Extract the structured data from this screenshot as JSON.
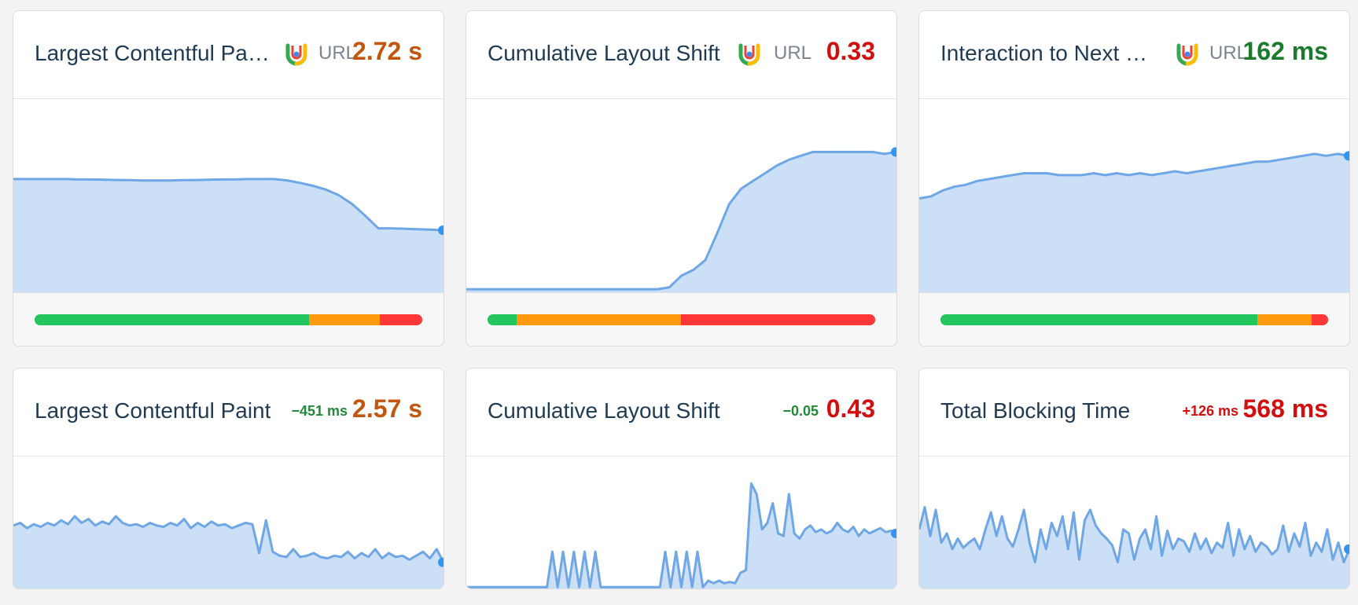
{
  "colors": {
    "good": "#22c55e",
    "needs_improvement": "#ff9a0e",
    "poor": "#ff3737",
    "value_orange": "#c2560e",
    "value_red": "#d10f0f",
    "value_green": "#1a7a2e",
    "delta_green": "#22883a",
    "delta_red": "#d10f0f",
    "line": "#6ea6e6",
    "fill": "#cbdff6",
    "endpoint": "#2f96f5"
  },
  "cards": [
    {
      "title": "Largest Contentful Pa…",
      "source_icon": "crux-chrome-icon",
      "url_label": "URL",
      "value": "2.72 s",
      "value_color": "value_orange",
      "distribution": {
        "good": 0.707,
        "needs_improvement": 0.183,
        "poor": 0.11
      }
    },
    {
      "title": "Cumulative Layout Shift",
      "source_icon": "crux-chrome-icon",
      "url_label": "URL",
      "value": "0.33",
      "value_color": "value_red",
      "distribution": {
        "good": 0.075,
        "needs_improvement": 0.424,
        "poor": 0.501
      }
    },
    {
      "title": "Interaction to Next …",
      "source_icon": "crux-chrome-icon",
      "url_label": "URL",
      "value": "162 ms",
      "value_color": "value_green",
      "distribution": {
        "good": 0.818,
        "needs_improvement": 0.14,
        "poor": 0.042
      }
    },
    {
      "title": "Largest Contentful Paint",
      "delta": "−451 ms",
      "delta_color": "delta_green",
      "value": "2.57 s",
      "value_color": "value_orange"
    },
    {
      "title": "Cumulative Layout Shift",
      "delta": "−0.05",
      "delta_color": "delta_green",
      "value": "0.43",
      "value_color": "value_red"
    },
    {
      "title": "Total Blocking Time",
      "delta": "+126 ms",
      "delta_color": "delta_red",
      "value": "568 ms",
      "value_color": "value_red"
    }
  ],
  "chart_data": [
    {
      "type": "area",
      "ylim": [
        0,
        1
      ],
      "values": [
        0.59,
        0.59,
        0.59,
        0.59,
        0.59,
        0.588,
        0.588,
        0.586,
        0.585,
        0.584,
        0.582,
        0.582,
        0.582,
        0.584,
        0.585,
        0.586,
        0.588,
        0.588,
        0.59,
        0.59,
        0.59,
        0.583,
        0.57,
        0.555,
        0.535,
        0.505,
        0.46,
        0.4,
        0.335,
        0.335,
        0.333,
        0.33,
        0.328,
        0.325
      ]
    },
    {
      "type": "area",
      "ylim": [
        0,
        1
      ],
      "values": [
        0.02,
        0.02,
        0.02,
        0.02,
        0.02,
        0.02,
        0.02,
        0.02,
        0.02,
        0.02,
        0.02,
        0.02,
        0.02,
        0.02,
        0.02,
        0.02,
        0.02,
        0.03,
        0.09,
        0.12,
        0.17,
        0.31,
        0.46,
        0.54,
        0.58,
        0.62,
        0.66,
        0.69,
        0.71,
        0.73,
        0.73,
        0.73,
        0.73,
        0.73,
        0.73,
        0.72,
        0.73
      ]
    },
    {
      "type": "area",
      "ylim": [
        0,
        1
      ],
      "values": [
        0.49,
        0.5,
        0.53,
        0.55,
        0.56,
        0.58,
        0.59,
        0.6,
        0.61,
        0.62,
        0.62,
        0.62,
        0.61,
        0.61,
        0.61,
        0.62,
        0.61,
        0.62,
        0.61,
        0.62,
        0.61,
        0.62,
        0.63,
        0.62,
        0.63,
        0.64,
        0.65,
        0.66,
        0.67,
        0.68,
        0.68,
        0.69,
        0.7,
        0.71,
        0.72,
        0.71,
        0.72,
        0.71
      ]
    },
    {
      "type": "area",
      "ylim": [
        0,
        1
      ],
      "values": [
        0.48,
        0.5,
        0.46,
        0.49,
        0.47,
        0.5,
        0.48,
        0.52,
        0.49,
        0.55,
        0.5,
        0.53,
        0.48,
        0.51,
        0.49,
        0.55,
        0.5,
        0.48,
        0.49,
        0.47,
        0.5,
        0.48,
        0.47,
        0.5,
        0.48,
        0.53,
        0.46,
        0.5,
        0.47,
        0.51,
        0.48,
        0.49,
        0.46,
        0.48,
        0.5,
        0.49,
        0.27,
        0.52,
        0.28,
        0.25,
        0.24,
        0.3,
        0.24,
        0.25,
        0.27,
        0.24,
        0.23,
        0.25,
        0.24,
        0.28,
        0.23,
        0.27,
        0.24,
        0.3,
        0.23,
        0.27,
        0.24,
        0.25,
        0.22,
        0.25,
        0.28,
        0.23,
        0.3,
        0.2
      ]
    },
    {
      "type": "area",
      "ylim": [
        0,
        1
      ],
      "values": [
        0.01,
        0.01,
        0.01,
        0.01,
        0.01,
        0.01,
        0.01,
        0.01,
        0.01,
        0.01,
        0.01,
        0.01,
        0.01,
        0.01,
        0.01,
        0.01,
        0.28,
        0.01,
        0.28,
        0.01,
        0.28,
        0.01,
        0.28,
        0.01,
        0.28,
        0.01,
        0.01,
        0.01,
        0.01,
        0.01,
        0.01,
        0.01,
        0.01,
        0.01,
        0.01,
        0.01,
        0.01,
        0.28,
        0.01,
        0.28,
        0.01,
        0.28,
        0.01,
        0.28,
        0.01,
        0.06,
        0.04,
        0.06,
        0.04,
        0.05,
        0.04,
        0.12,
        0.14,
        0.8,
        0.72,
        0.45,
        0.5,
        0.65,
        0.42,
        0.4,
        0.72,
        0.42,
        0.38,
        0.45,
        0.48,
        0.43,
        0.45,
        0.42,
        0.44,
        0.5,
        0.45,
        0.43,
        0.47,
        0.4,
        0.45,
        0.42,
        0.44,
        0.46,
        0.43,
        0.44,
        0.42
      ]
    },
    {
      "type": "area",
      "ylim": [
        0,
        1
      ],
      "values": [
        0.45,
        0.62,
        0.4,
        0.6,
        0.35,
        0.42,
        0.3,
        0.38,
        0.31,
        0.35,
        0.38,
        0.3,
        0.45,
        0.58,
        0.4,
        0.55,
        0.38,
        0.32,
        0.45,
        0.6,
        0.35,
        0.2,
        0.45,
        0.3,
        0.5,
        0.4,
        0.55,
        0.3,
        0.58,
        0.22,
        0.52,
        0.6,
        0.48,
        0.42,
        0.38,
        0.33,
        0.2,
        0.45,
        0.42,
        0.22,
        0.38,
        0.45,
        0.3,
        0.55,
        0.25,
        0.44,
        0.3,
        0.38,
        0.36,
        0.28,
        0.42,
        0.3,
        0.38,
        0.27,
        0.35,
        0.31,
        0.5,
        0.25,
        0.45,
        0.3,
        0.4,
        0.28,
        0.35,
        0.32,
        0.26,
        0.3,
        0.48,
        0.28,
        0.42,
        0.32,
        0.5,
        0.25,
        0.35,
        0.28,
        0.45,
        0.22,
        0.35,
        0.2,
        0.3
      ]
    }
  ]
}
